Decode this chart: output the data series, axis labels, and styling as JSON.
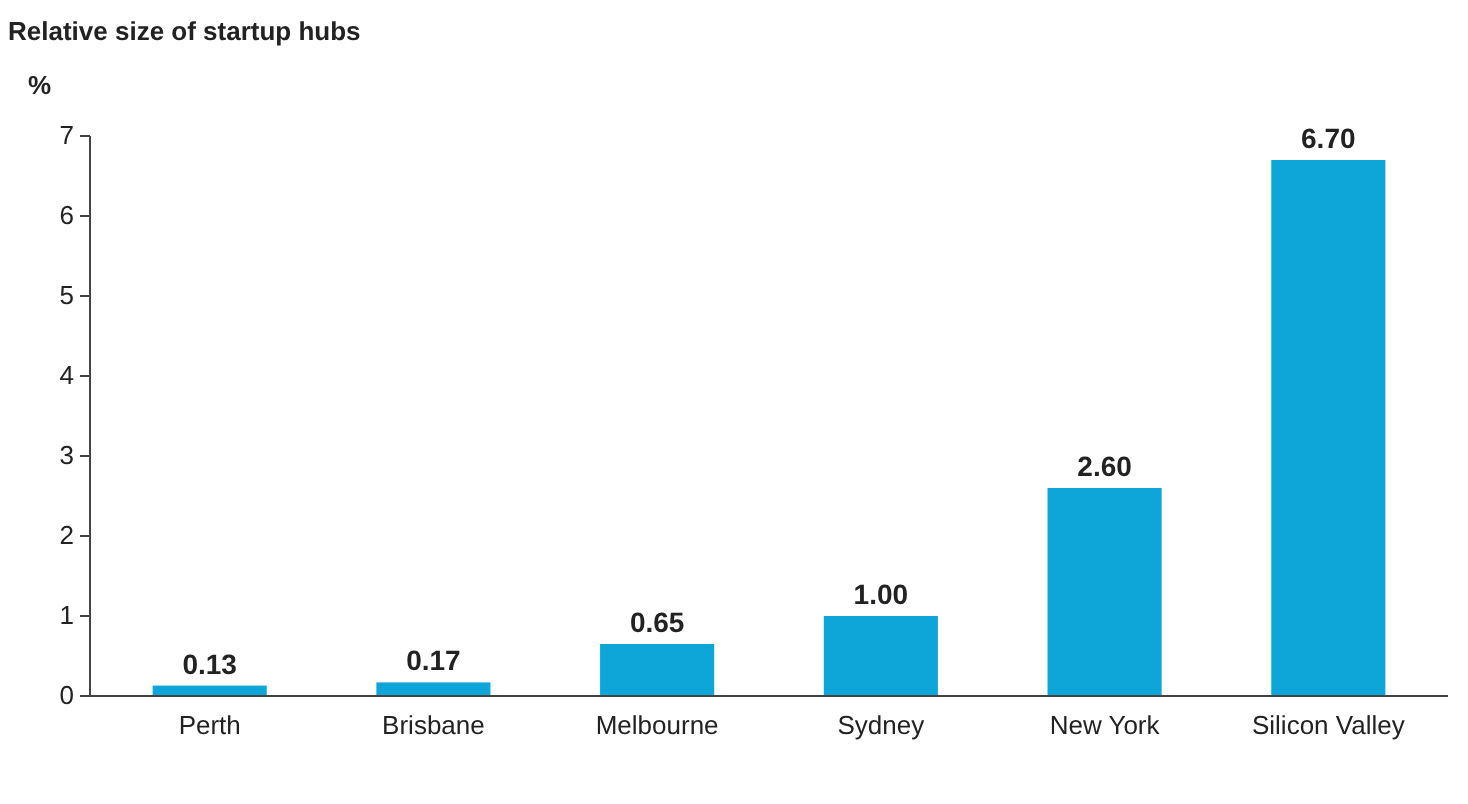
{
  "chart_data": {
    "type": "bar",
    "title": "Relative size of startup hubs",
    "ylabel": "%",
    "categories": [
      "Perth",
      "Brisbane",
      "Melbourne",
      "Sydney",
      "New York",
      "Silicon Valley"
    ],
    "values": [
      0.13,
      0.17,
      0.65,
      1.0,
      2.6,
      6.7
    ],
    "value_labels": [
      "0.13",
      "0.17",
      "0.65",
      "1.00",
      "2.60",
      "6.70"
    ],
    "color": "#0ea5d8",
    "ylim": [
      0,
      7
    ],
    "yticks": [
      0,
      1,
      2,
      3,
      4,
      5,
      6,
      7
    ],
    "grid": false
  }
}
